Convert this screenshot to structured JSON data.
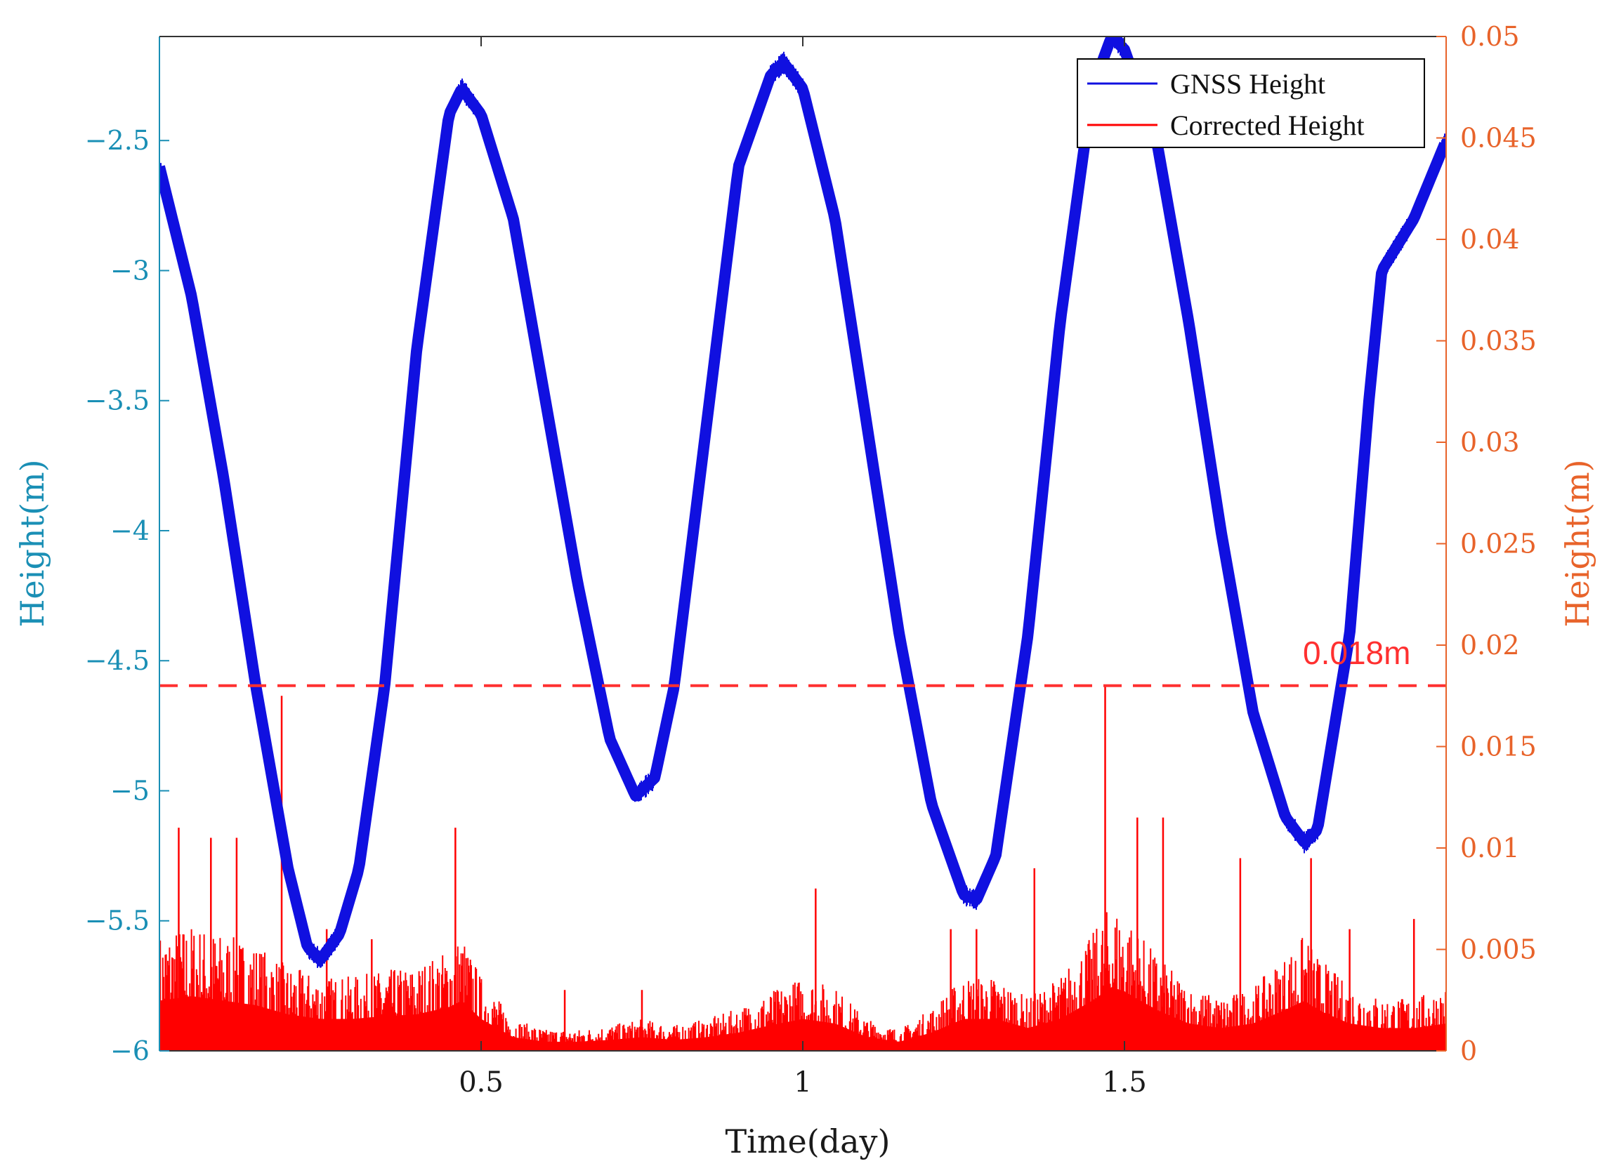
{
  "chart_data": {
    "type": "line",
    "xlabel": "Time(day)",
    "xlim": [
      0,
      2
    ],
    "xticks": [
      0.5,
      1,
      1.5
    ],
    "xtick_labels": [
      "0.5",
      "1",
      "1.5"
    ],
    "left_axis": {
      "label": "Height(m)",
      "color": "#1a8fb5",
      "ylim": [
        -6,
        -2.1
      ],
      "ticks": [
        -2.5,
        -3,
        -3.5,
        -4,
        -4.5,
        -5,
        -5.5,
        -6
      ],
      "tick_labels": [
        "−2.5",
        "−3",
        "−3.5",
        "−4",
        "−4.5",
        "−5",
        "−5.5",
        "−6"
      ]
    },
    "right_axis": {
      "label": "Height(m)",
      "color": "#e8632a",
      "ylim": [
        0,
        0.05
      ],
      "ticks": [
        0,
        0.005,
        0.01,
        0.015,
        0.02,
        0.025,
        0.03,
        0.035,
        0.04,
        0.045,
        0.05
      ],
      "tick_labels": [
        "0",
        "0.005",
        "0.01",
        "0.015",
        "0.02",
        "0.025",
        "0.03",
        "0.035",
        "0.04",
        "0.045",
        "0.05"
      ]
    },
    "series": [
      {
        "name": "GNSS Height",
        "axis": "left",
        "color": "#1010e0",
        "x": [
          0.0,
          0.05,
          0.1,
          0.15,
          0.2,
          0.23,
          0.25,
          0.28,
          0.31,
          0.35,
          0.4,
          0.45,
          0.47,
          0.5,
          0.55,
          0.6,
          0.65,
          0.7,
          0.74,
          0.77,
          0.8,
          0.85,
          0.9,
          0.95,
          0.97,
          1.0,
          1.05,
          1.1,
          1.15,
          1.2,
          1.25,
          1.27,
          1.3,
          1.35,
          1.4,
          1.45,
          1.48,
          1.5,
          1.55,
          1.6,
          1.65,
          1.7,
          1.75,
          1.78,
          1.8,
          1.85,
          1.88,
          1.9,
          1.95,
          2.0
        ],
        "values": [
          -2.6,
          -3.1,
          -3.8,
          -4.6,
          -5.3,
          -5.6,
          -5.65,
          -5.55,
          -5.3,
          -4.6,
          -3.3,
          -2.4,
          -2.3,
          -2.4,
          -2.8,
          -3.5,
          -4.2,
          -4.8,
          -5.02,
          -4.95,
          -4.6,
          -3.6,
          -2.6,
          -2.25,
          -2.2,
          -2.3,
          -2.8,
          -3.6,
          -4.4,
          -5.05,
          -5.4,
          -5.42,
          -5.25,
          -4.4,
          -3.2,
          -2.3,
          -2.1,
          -2.15,
          -2.5,
          -3.2,
          -4.0,
          -4.7,
          -5.1,
          -5.2,
          -5.15,
          -4.4,
          -3.5,
          -3.0,
          -2.8,
          -2.5
        ]
      },
      {
        "name": "Corrected Height",
        "axis": "right",
        "color": "#ff0000",
        "x": [
          0.0,
          0.05,
          0.1,
          0.15,
          0.2,
          0.25,
          0.3,
          0.35,
          0.4,
          0.45,
          0.47,
          0.5,
          0.55,
          0.6,
          0.65,
          0.7,
          0.75,
          0.8,
          0.85,
          0.9,
          0.95,
          1.0,
          1.05,
          1.1,
          1.15,
          1.2,
          1.25,
          1.3,
          1.35,
          1.4,
          1.45,
          1.48,
          1.5,
          1.55,
          1.6,
          1.65,
          1.7,
          1.75,
          1.78,
          1.8,
          1.85,
          1.9,
          1.95,
          2.0
        ],
        "values": [
          0.0055,
          0.006,
          0.0055,
          0.005,
          0.004,
          0.0035,
          0.0035,
          0.0038,
          0.004,
          0.0048,
          0.0055,
          0.0035,
          0.0015,
          0.001,
          0.001,
          0.0012,
          0.0015,
          0.0012,
          0.0015,
          0.002,
          0.0028,
          0.0035,
          0.003,
          0.0015,
          0.001,
          0.002,
          0.0035,
          0.0035,
          0.0025,
          0.0035,
          0.0055,
          0.007,
          0.0065,
          0.0045,
          0.003,
          0.0025,
          0.003,
          0.0045,
          0.0055,
          0.0045,
          0.003,
          0.0025,
          0.0025,
          0.003
        ]
      }
    ],
    "spikes": {
      "x": [
        0.03,
        0.08,
        0.12,
        0.19,
        0.26,
        0.33,
        0.46,
        0.63,
        0.75,
        1.02,
        1.23,
        1.27,
        1.36,
        1.47,
        1.52,
        1.56,
        1.68,
        1.79,
        1.85,
        1.95
      ],
      "values": [
        0.011,
        0.0105,
        0.0105,
        0.0175,
        0.006,
        0.0055,
        0.011,
        0.003,
        0.003,
        0.008,
        0.006,
        0.006,
        0.009,
        0.018,
        0.0115,
        0.0115,
        0.0095,
        0.0095,
        0.006,
        0.0065
      ]
    },
    "threshold": {
      "value": 0.018,
      "axis": "right",
      "label": "0.018m",
      "color": "#ff3030",
      "style": "dashed"
    },
    "legend": {
      "position": "top-right",
      "entries": [
        "GNSS Height",
        "Corrected Height"
      ]
    }
  }
}
